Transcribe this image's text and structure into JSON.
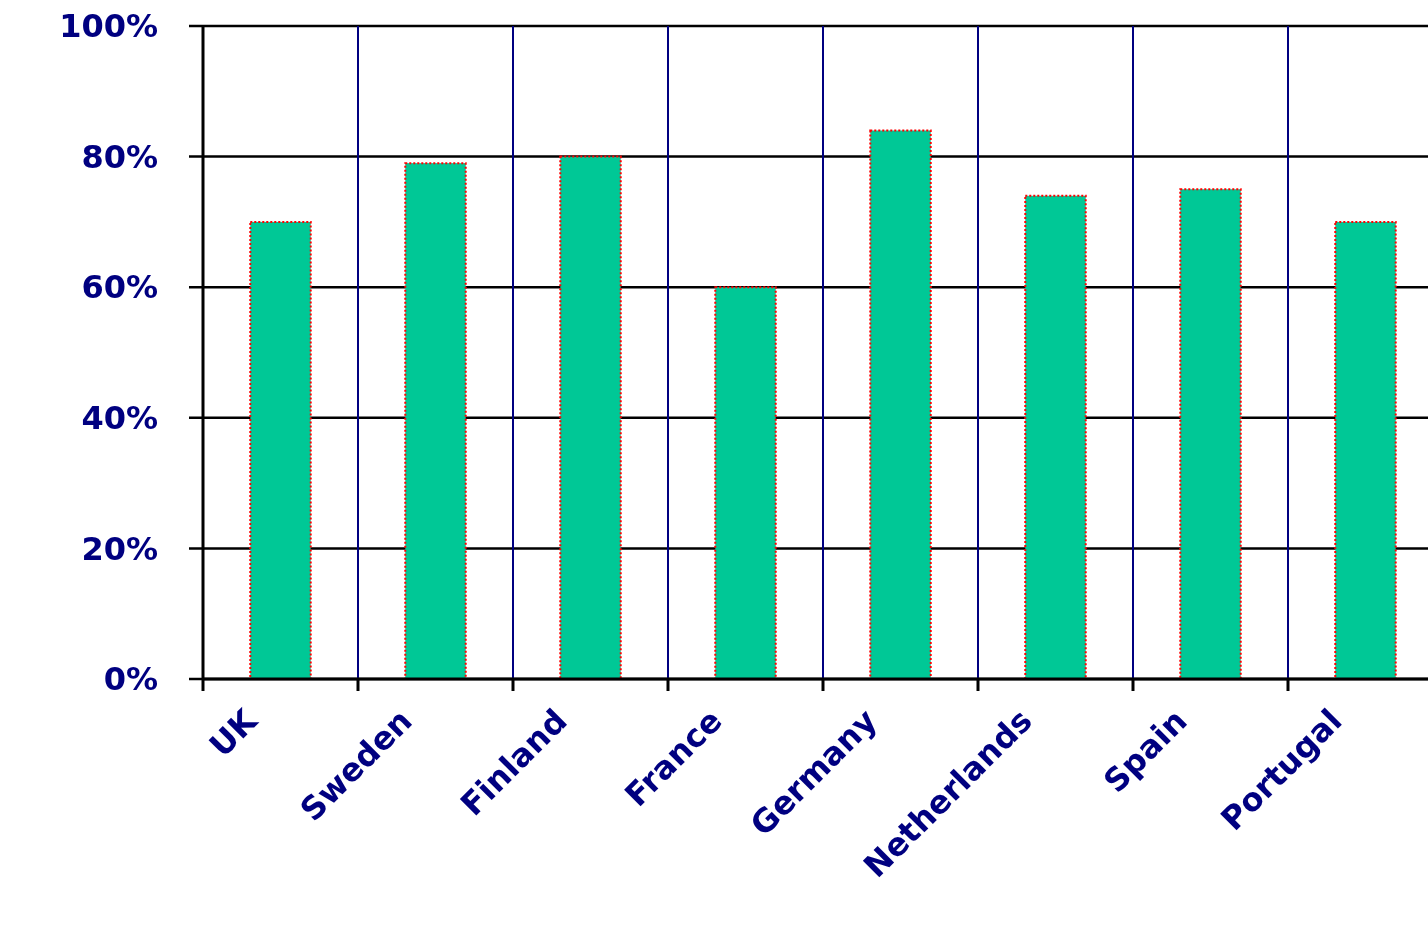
{
  "chart_data": {
    "type": "bar",
    "categories": [
      "UK",
      "Sweden",
      "Finland",
      "France",
      "Germany",
      "Netherlands",
      "Spain",
      "Portugal"
    ],
    "values": [
      70,
      79,
      80,
      60,
      84,
      74,
      75,
      70
    ],
    "color": "#00c896",
    "ylim": [
      0,
      100
    ],
    "yticks": [
      {
        "value": 0,
        "label": "0%"
      },
      {
        "value": 20,
        "label": "20%"
      },
      {
        "value": 40,
        "label": "40%"
      },
      {
        "value": 60,
        "label": "60%"
      },
      {
        "value": 80,
        "label": "80%"
      },
      {
        "value": 100,
        "label": "100%"
      }
    ],
    "grid": true
  }
}
